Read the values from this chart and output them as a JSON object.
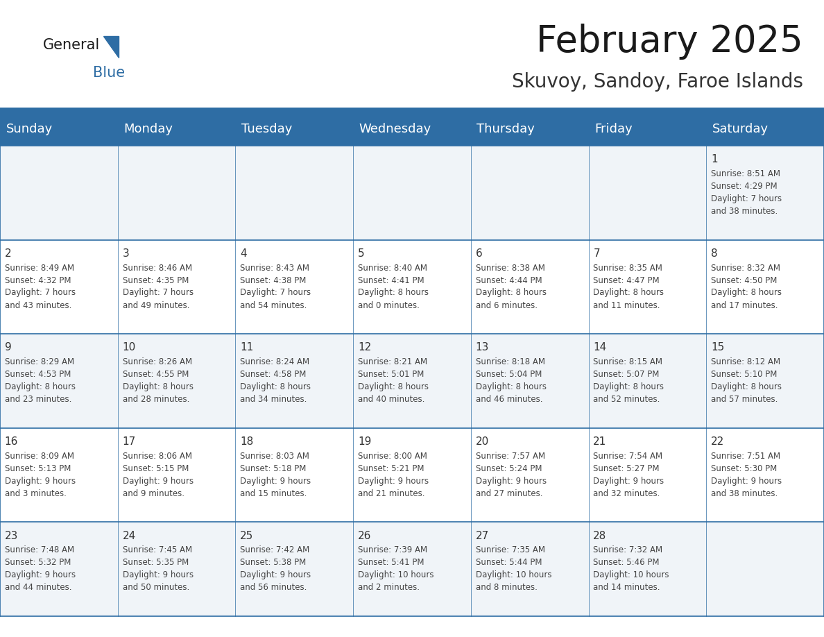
{
  "title": "February 2025",
  "subtitle": "Skuvoy, Sandoy, Faroe Islands",
  "header_bg": "#2E6DA4",
  "header_text_color": "#FFFFFF",
  "cell_bg_odd": "#F0F4F8",
  "cell_bg_even": "#FFFFFF",
  "border_color": "#2E6DA4",
  "text_color": "#444444",
  "day_num_color": "#333333",
  "day_headers": [
    "Sunday",
    "Monday",
    "Tuesday",
    "Wednesday",
    "Thursday",
    "Friday",
    "Saturday"
  ],
  "title_fontsize": 38,
  "subtitle_fontsize": 20,
  "header_fontsize": 13,
  "day_num_fontsize": 11,
  "info_fontsize": 8.5,
  "calendar_data": [
    [
      null,
      null,
      null,
      null,
      null,
      null,
      {
        "day": "1",
        "sunrise": "8:51 AM",
        "sunset": "4:29 PM",
        "daylight": "7 hours\nand 38 minutes."
      }
    ],
    [
      {
        "day": "2",
        "sunrise": "8:49 AM",
        "sunset": "4:32 PM",
        "daylight": "7 hours\nand 43 minutes."
      },
      {
        "day": "3",
        "sunrise": "8:46 AM",
        "sunset": "4:35 PM",
        "daylight": "7 hours\nand 49 minutes."
      },
      {
        "day": "4",
        "sunrise": "8:43 AM",
        "sunset": "4:38 PM",
        "daylight": "7 hours\nand 54 minutes."
      },
      {
        "day": "5",
        "sunrise": "8:40 AM",
        "sunset": "4:41 PM",
        "daylight": "8 hours\nand 0 minutes."
      },
      {
        "day": "6",
        "sunrise": "8:38 AM",
        "sunset": "4:44 PM",
        "daylight": "8 hours\nand 6 minutes."
      },
      {
        "day": "7",
        "sunrise": "8:35 AM",
        "sunset": "4:47 PM",
        "daylight": "8 hours\nand 11 minutes."
      },
      {
        "day": "8",
        "sunrise": "8:32 AM",
        "sunset": "4:50 PM",
        "daylight": "8 hours\nand 17 minutes."
      }
    ],
    [
      {
        "day": "9",
        "sunrise": "8:29 AM",
        "sunset": "4:53 PM",
        "daylight": "8 hours\nand 23 minutes."
      },
      {
        "day": "10",
        "sunrise": "8:26 AM",
        "sunset": "4:55 PM",
        "daylight": "8 hours\nand 28 minutes."
      },
      {
        "day": "11",
        "sunrise": "8:24 AM",
        "sunset": "4:58 PM",
        "daylight": "8 hours\nand 34 minutes."
      },
      {
        "day": "12",
        "sunrise": "8:21 AM",
        "sunset": "5:01 PM",
        "daylight": "8 hours\nand 40 minutes."
      },
      {
        "day": "13",
        "sunrise": "8:18 AM",
        "sunset": "5:04 PM",
        "daylight": "8 hours\nand 46 minutes."
      },
      {
        "day": "14",
        "sunrise": "8:15 AM",
        "sunset": "5:07 PM",
        "daylight": "8 hours\nand 52 minutes."
      },
      {
        "day": "15",
        "sunrise": "8:12 AM",
        "sunset": "5:10 PM",
        "daylight": "8 hours\nand 57 minutes."
      }
    ],
    [
      {
        "day": "16",
        "sunrise": "8:09 AM",
        "sunset": "5:13 PM",
        "daylight": "9 hours\nand 3 minutes."
      },
      {
        "day": "17",
        "sunrise": "8:06 AM",
        "sunset": "5:15 PM",
        "daylight": "9 hours\nand 9 minutes."
      },
      {
        "day": "18",
        "sunrise": "8:03 AM",
        "sunset": "5:18 PM",
        "daylight": "9 hours\nand 15 minutes."
      },
      {
        "day": "19",
        "sunrise": "8:00 AM",
        "sunset": "5:21 PM",
        "daylight": "9 hours\nand 21 minutes."
      },
      {
        "day": "20",
        "sunrise": "7:57 AM",
        "sunset": "5:24 PM",
        "daylight": "9 hours\nand 27 minutes."
      },
      {
        "day": "21",
        "sunrise": "7:54 AM",
        "sunset": "5:27 PM",
        "daylight": "9 hours\nand 32 minutes."
      },
      {
        "day": "22",
        "sunrise": "7:51 AM",
        "sunset": "5:30 PM",
        "daylight": "9 hours\nand 38 minutes."
      }
    ],
    [
      {
        "day": "23",
        "sunrise": "7:48 AM",
        "sunset": "5:32 PM",
        "daylight": "9 hours\nand 44 minutes."
      },
      {
        "day": "24",
        "sunrise": "7:45 AM",
        "sunset": "5:35 PM",
        "daylight": "9 hours\nand 50 minutes."
      },
      {
        "day": "25",
        "sunrise": "7:42 AM",
        "sunset": "5:38 PM",
        "daylight": "9 hours\nand 56 minutes."
      },
      {
        "day": "26",
        "sunrise": "7:39 AM",
        "sunset": "5:41 PM",
        "daylight": "10 hours\nand 2 minutes."
      },
      {
        "day": "27",
        "sunrise": "7:35 AM",
        "sunset": "5:44 PM",
        "daylight": "10 hours\nand 8 minutes."
      },
      {
        "day": "28",
        "sunrise": "7:32 AM",
        "sunset": "5:46 PM",
        "daylight": "10 hours\nand 14 minutes."
      },
      null
    ]
  ]
}
